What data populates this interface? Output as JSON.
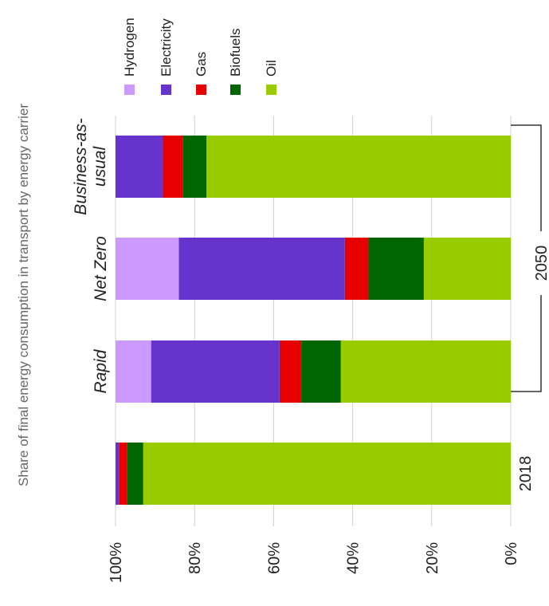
{
  "chart_data": {
    "type": "bar",
    "orientation": "horizontal-stacked-percent",
    "ylabel": "Share of final energy consumption in transport by energy carrier",
    "categories": [
      "2018",
      "Rapid",
      "Net Zero",
      "Business-as-usual"
    ],
    "category_groups": [
      {
        "label": "2050",
        "members": [
          "Rapid",
          "Net Zero",
          "Business-as-usual"
        ]
      }
    ],
    "xlim": [
      0,
      100
    ],
    "x_ticks": [
      "0%",
      "20%",
      "40%",
      "60%",
      "80%",
      "100%"
    ],
    "grid": true,
    "legend_position": "top-right",
    "series": [
      {
        "name": "Oil",
        "color": "#99cc00",
        "values": [
          93,
          43,
          22,
          77
        ]
      },
      {
        "name": "Biofuels",
        "color": "#006600",
        "values": [
          4,
          10,
          14,
          6
        ]
      },
      {
        "name": "Gas",
        "color": "#e60000",
        "values": [
          2,
          5.5,
          6,
          5
        ]
      },
      {
        "name": "Electricity",
        "color": "#6633cc",
        "values": [
          1,
          32.5,
          42,
          12
        ]
      },
      {
        "name": "Hydrogen",
        "color": "#cc99ff",
        "values": [
          0,
          9,
          16,
          0
        ]
      }
    ],
    "legend_order": [
      "Hydrogen",
      "Electricity",
      "Gas",
      "Biofuels",
      "Oil"
    ]
  }
}
